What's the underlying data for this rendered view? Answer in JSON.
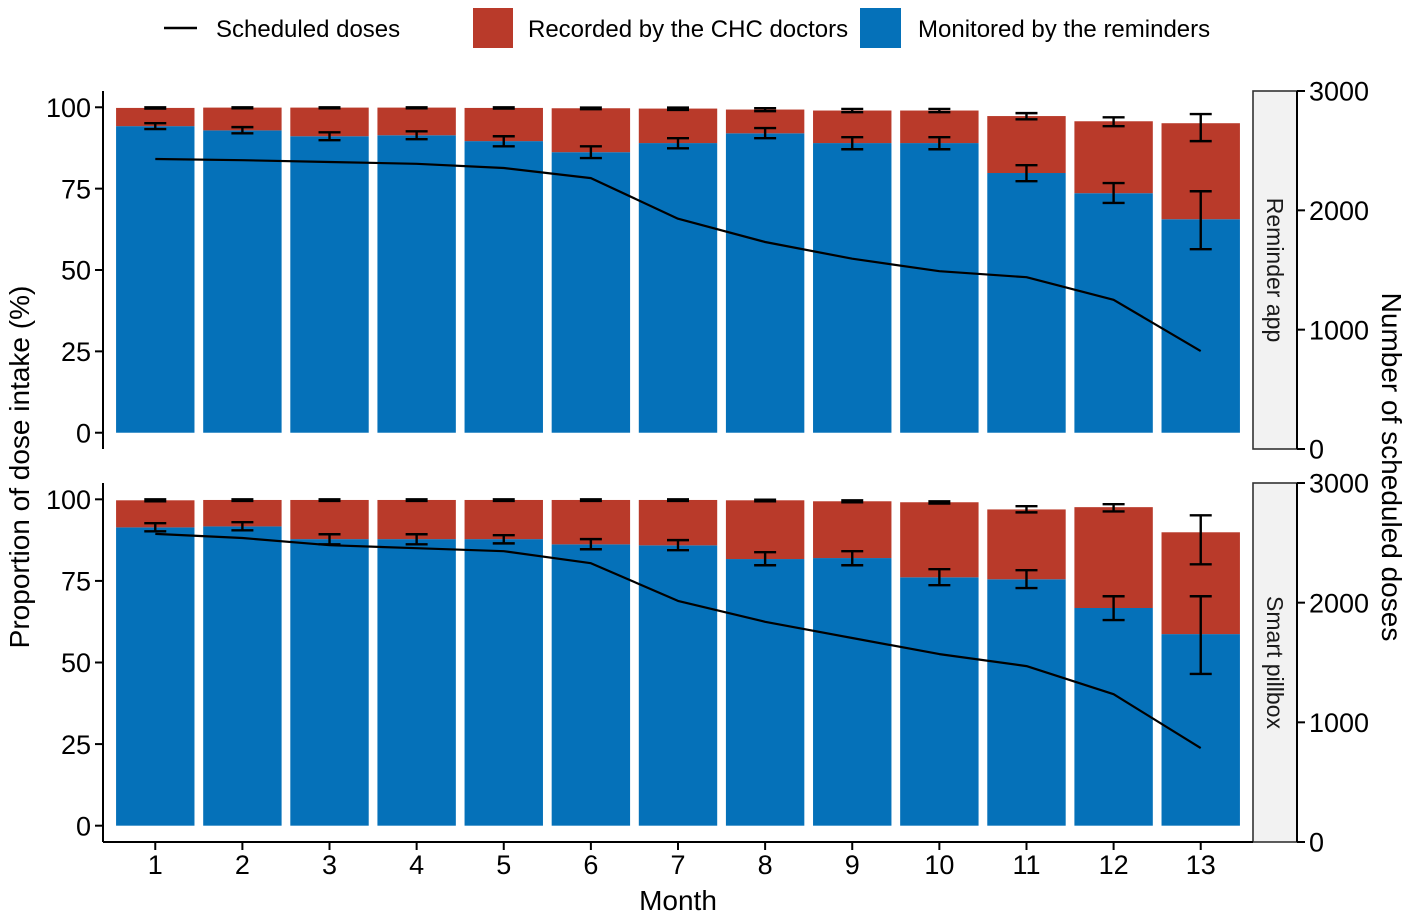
{
  "chart_data": {
    "type": "bar",
    "xlabel": "Month",
    "ylabel": "Proportion of dose intake (%)",
    "y2label": "Number of scheduled doses",
    "categories": [
      "1",
      "2",
      "3",
      "4",
      "5",
      "6",
      "7",
      "8",
      "9",
      "10",
      "11",
      "12",
      "13"
    ],
    "ylim": [
      0,
      100
    ],
    "yticks": [
      0,
      25,
      50,
      75,
      100
    ],
    "y2lim": [
      0,
      3000
    ],
    "y2ticks": [
      0,
      1000,
      2000,
      3000
    ],
    "grid": false,
    "line_series": {
      "name": "Scheduled doses",
      "color": "#000000"
    },
    "bar_series": [
      {
        "name": "Recorded by the CHC doctors",
        "color": "#B93A2A"
      },
      {
        "name": "Monitored by the reminders",
        "color": "#0571B9"
      }
    ],
    "panels": [
      {
        "name": "Reminder app",
        "monitored": [
          94.2,
          92.9,
          91.1,
          91.4,
          89.6,
          86.2,
          89.0,
          92.0,
          89.0,
          89.0,
          79.8,
          73.6,
          65.6
        ],
        "recorded": [
          5.6,
          7.0,
          8.8,
          8.5,
          10.2,
          13.5,
          10.6,
          7.3,
          10.0,
          10.0,
          17.5,
          22.1,
          29.5
        ],
        "monitored_ci": [
          [
            93.3,
            95.1
          ],
          [
            92.0,
            93.9
          ],
          [
            89.9,
            92.3
          ],
          [
            90.2,
            92.6
          ],
          [
            88.0,
            91.1
          ],
          [
            84.4,
            88.0
          ],
          [
            87.4,
            90.5
          ],
          [
            90.5,
            93.6
          ],
          [
            87.1,
            90.8
          ],
          [
            87.1,
            90.8
          ],
          [
            77.3,
            82.2
          ],
          [
            70.6,
            76.7
          ],
          [
            56.4,
            74.2
          ]
        ],
        "total_ci": [
          [
            99.6,
            100
          ],
          [
            99.7,
            100
          ],
          [
            99.7,
            100
          ],
          [
            99.7,
            100
          ],
          [
            99.6,
            100
          ],
          [
            99.4,
            99.9
          ],
          [
            99.2,
            99.9
          ],
          [
            98.8,
            99.7
          ],
          [
            98.5,
            99.5
          ],
          [
            98.5,
            99.5
          ],
          [
            96.3,
            98.2
          ],
          [
            94.2,
            96.9
          ],
          [
            89.6,
            97.9
          ]
        ],
        "scheduled_doses": [
          2430,
          2420,
          2405,
          2390,
          2355,
          2270,
          1930,
          1735,
          1595,
          1490,
          1440,
          1250,
          820
        ]
      },
      {
        "name": "Smart pillbox",
        "monitored": [
          91.4,
          91.7,
          87.8,
          87.8,
          87.8,
          86.2,
          85.9,
          81.7,
          82.0,
          76.1,
          75.5,
          66.7,
          58.7
        ],
        "recorded": [
          8.3,
          8.1,
          12.0,
          12.0,
          12.0,
          13.6,
          13.9,
          18.0,
          17.4,
          23.0,
          21.4,
          30.9,
          31.2
        ],
        "monitored_ci": [
          [
            90.2,
            92.7
          ],
          [
            90.5,
            93.0
          ],
          [
            86.2,
            89.3
          ],
          [
            86.2,
            89.3
          ],
          [
            86.5,
            89.0
          ],
          [
            84.7,
            87.8
          ],
          [
            84.4,
            87.5
          ],
          [
            79.8,
            83.8
          ],
          [
            79.8,
            84.1
          ],
          [
            73.7,
            78.6
          ],
          [
            72.8,
            78.3
          ],
          [
            63.0,
            70.3
          ],
          [
            46.5,
            70.3
          ]
        ],
        "total_ci": [
          [
            99.4,
            100
          ],
          [
            99.5,
            100
          ],
          [
            99.5,
            100
          ],
          [
            99.5,
            100
          ],
          [
            99.5,
            100
          ],
          [
            99.5,
            100
          ],
          [
            99.5,
            100
          ],
          [
            99.4,
            99.9
          ],
          [
            99.1,
            99.7
          ],
          [
            98.7,
            99.4
          ],
          [
            96.0,
            97.9
          ],
          [
            96.3,
            98.5
          ],
          [
            80.1,
            95.1
          ]
        ],
        "scheduled_doses": [
          2575,
          2540,
          2480,
          2455,
          2430,
          2330,
          2015,
          1840,
          1705,
          1570,
          1470,
          1235,
          785
        ]
      }
    ]
  }
}
